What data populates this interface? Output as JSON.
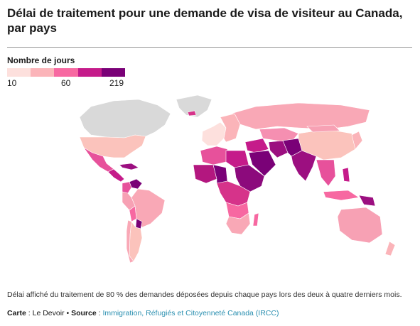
{
  "header": {
    "title": "Délai de traitement pour une demande de visa de visiteur au Canada, par pays"
  },
  "legend": {
    "title": "Nombre de jours",
    "min_label": "10",
    "mid_label": "60",
    "max_label": "219",
    "colors": [
      "#fde0dd",
      "#fbb4b9",
      "#f768a1",
      "#c51b8a",
      "#7a0177"
    ],
    "no_data_color": "#d9d9d9"
  },
  "footer": {
    "note": "Délai affiché du traitement de 80 % des demandes déposées depuis chaque pays lors des deux à quatre derniers mois.",
    "map_label": "Carte",
    "map_value": " : Le Devoir • ",
    "source_label": "Source",
    "source_sep": " : ",
    "source_value": "Immigration, Réfugiés et Citoyenneté Canada (IRCC)"
  },
  "map_regions": [
    {
      "name": "canada",
      "color": "#d9d9d9"
    },
    {
      "name": "greenland",
      "color": "#d9d9d9"
    },
    {
      "name": "usa",
      "color": "#fbc3bc"
    },
    {
      "name": "mexico",
      "color": "#e7519b"
    },
    {
      "name": "central-america",
      "color": "#c51b8a"
    },
    {
      "name": "caribbean",
      "color": "#9c0f80"
    },
    {
      "name": "venezuela",
      "color": "#7a0177"
    },
    {
      "name": "colombia",
      "color": "#e7519b"
    },
    {
      "name": "brazil",
      "color": "#f9a8b6"
    },
    {
      "name": "peru",
      "color": "#f7a1b4"
    },
    {
      "name": "bolivia",
      "color": "#f768a1"
    },
    {
      "name": "paraguay",
      "color": "#7a0177"
    },
    {
      "name": "argentina",
      "color": "#fbc3bc"
    },
    {
      "name": "chile",
      "color": "#f9a8b6"
    },
    {
      "name": "iceland",
      "color": "#d6338a"
    },
    {
      "name": "europe-west",
      "color": "#fde0dd"
    },
    {
      "name": "europe-east",
      "color": "#fbb4b9"
    },
    {
      "name": "russia",
      "color": "#f9a8b6"
    },
    {
      "name": "north-africa",
      "color": "#e7519b"
    },
    {
      "name": "libya-egypt",
      "color": "#c51b8a"
    },
    {
      "name": "west-africa",
      "color": "#b3177f"
    },
    {
      "name": "nigeria",
      "color": "#7a0177"
    },
    {
      "name": "sudan-horn",
      "color": "#8c0a7c"
    },
    {
      "name": "central-africa",
      "color": "#d6338a"
    },
    {
      "name": "angola-zambia",
      "color": "#f768a1"
    },
    {
      "name": "southern-africa",
      "color": "#f9a8b6"
    },
    {
      "name": "madagascar",
      "color": "#f768a1"
    },
    {
      "name": "middle-east",
      "color": "#c51b8a"
    },
    {
      "name": "saudi-arabia",
      "color": "#7a0177"
    },
    {
      "name": "iran",
      "color": "#9c0f80"
    },
    {
      "name": "central-asia",
      "color": "#f58fb1"
    },
    {
      "name": "afghanistan-pakistan",
      "color": "#7a0177"
    },
    {
      "name": "india",
      "color": "#9c0f80"
    },
    {
      "name": "china",
      "color": "#fbc3bc"
    },
    {
      "name": "mongolia",
      "color": "#f7a1b4"
    },
    {
      "name": "japan-korea",
      "color": "#fbb4b9"
    },
    {
      "name": "southeast-asia",
      "color": "#e7519b"
    },
    {
      "name": "indonesia",
      "color": "#f768a1"
    },
    {
      "name": "philippines",
      "color": "#c51b8a"
    },
    {
      "name": "papua",
      "color": "#9c0f80"
    },
    {
      "name": "australia",
      "color": "#f7a1b4"
    },
    {
      "name": "new-zealand",
      "color": "#fbb4b9"
    }
  ]
}
